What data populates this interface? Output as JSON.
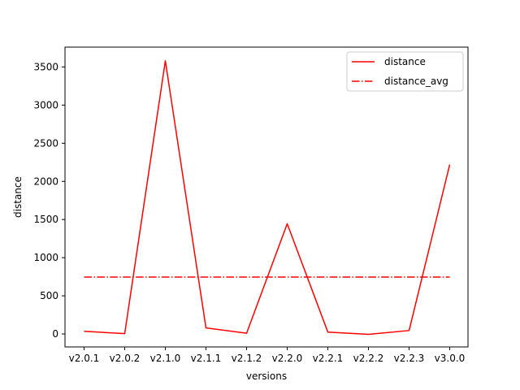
{
  "chart_data": {
    "type": "line",
    "title": "",
    "xlabel": "versions",
    "ylabel": "distance",
    "categories": [
      "v2.0.1",
      "v2.0.2",
      "v2.1.0",
      "v2.1.1",
      "v2.1.2",
      "v2.2.0",
      "v2.2.1",
      "v2.2.2",
      "v2.2.3",
      "v3.0.0"
    ],
    "yticks": [
      0,
      500,
      1000,
      1500,
      2000,
      2500,
      3000,
      3500
    ],
    "ylim": [
      -170,
      3760
    ],
    "grid": false,
    "legend_position": "top-right",
    "series": [
      {
        "name": "distance",
        "style": "solid",
        "color": "#ff0000",
        "values": [
          35,
          5,
          3580,
          80,
          10,
          1445,
          25,
          -5,
          45,
          2220
        ]
      },
      {
        "name": "distance_avg",
        "style": "dash-dot",
        "color": "#ff0000",
        "values": [
          746,
          746,
          746,
          746,
          746,
          746,
          746,
          746,
          746,
          746
        ]
      }
    ]
  }
}
